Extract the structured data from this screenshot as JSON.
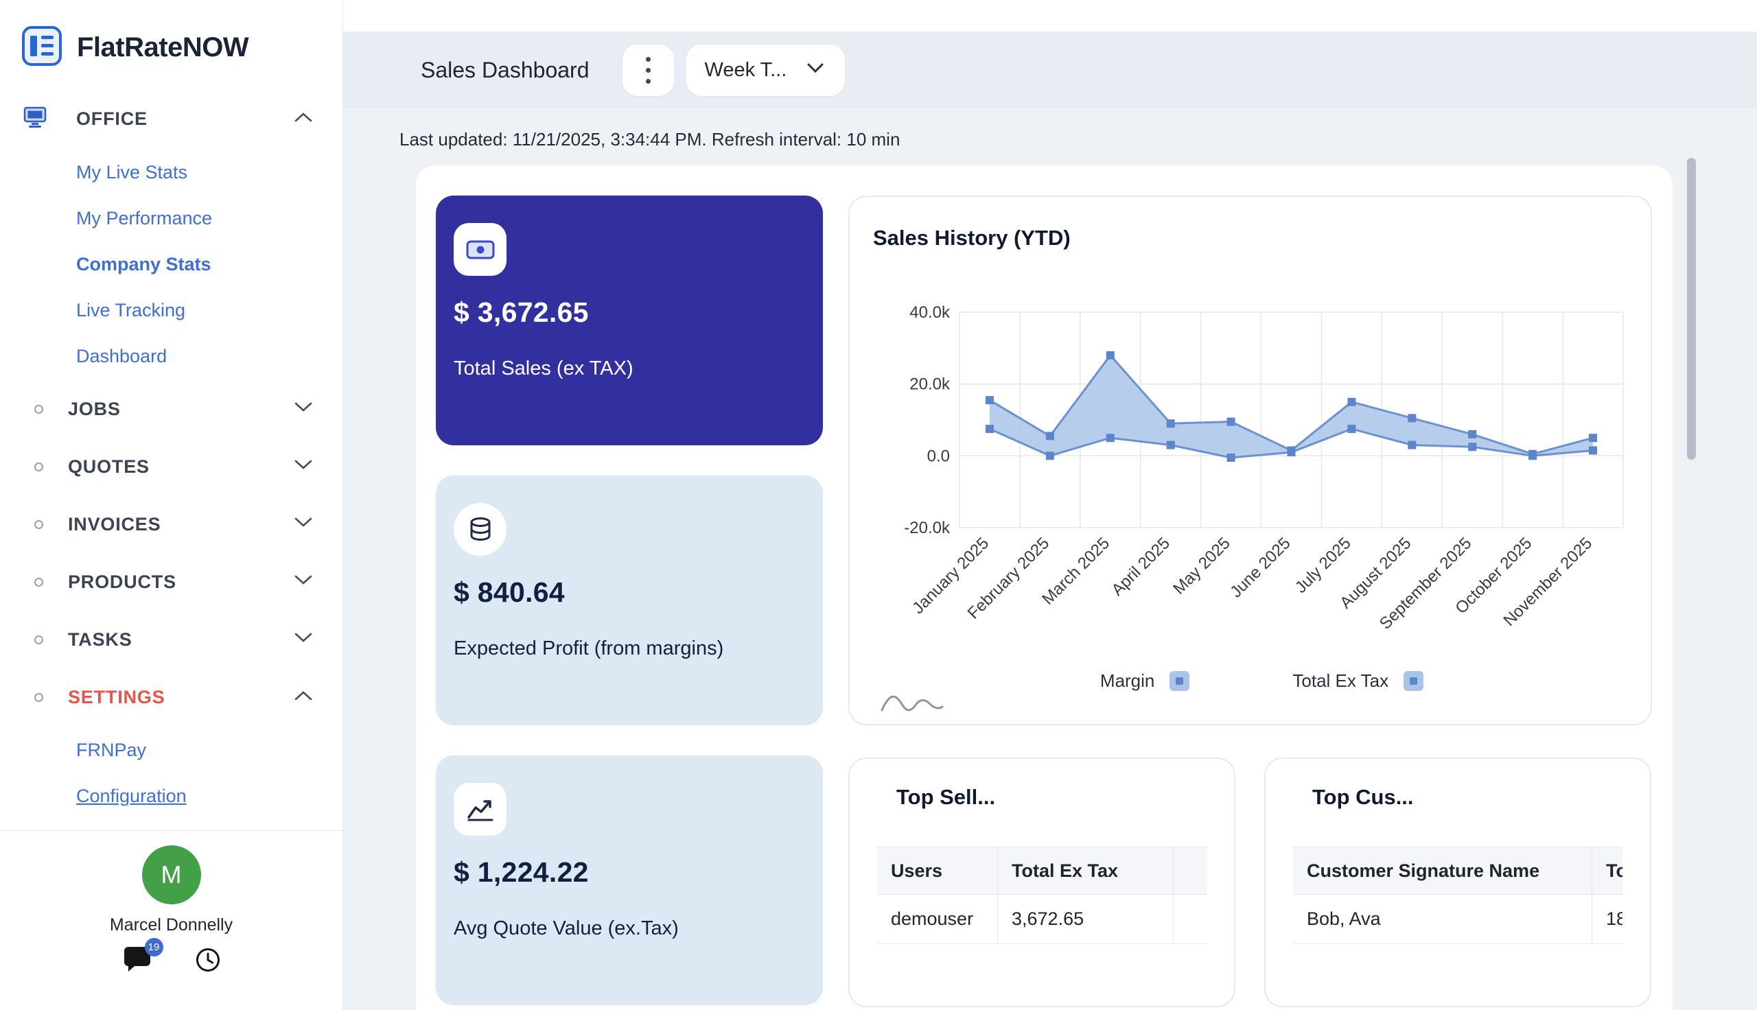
{
  "colors": {
    "accent_blue": "#3e6fd1",
    "dark_card": "#322f9e",
    "light_card": "#dce8f4",
    "settings_red": "#e25749",
    "avatar_green": "#43a047",
    "chart_line": "#6b91d1",
    "chart_fill": "#a9c4e8"
  },
  "sidebar": {
    "logo_text": "FlatRateNOW",
    "office": {
      "label": "OFFICE",
      "items": [
        {
          "label": "My Live Stats"
        },
        {
          "label": "My Performance"
        },
        {
          "label": "Company Stats",
          "active": true
        },
        {
          "label": "Live Tracking"
        },
        {
          "label": "Dashboard"
        }
      ]
    },
    "groups": [
      {
        "label": "JOBS"
      },
      {
        "label": "QUOTES"
      },
      {
        "label": "INVOICES"
      },
      {
        "label": "PRODUCTS"
      },
      {
        "label": "TASKS"
      }
    ],
    "settings": {
      "label": "SETTINGS",
      "items": [
        {
          "label": "FRNPay"
        },
        {
          "label": "Configuration"
        }
      ]
    },
    "user": {
      "name": "Marcel Donnelly",
      "initial": "M",
      "chat_badge": "19"
    }
  },
  "header": {
    "title": "Sales Dashboard",
    "period": "Week T...",
    "last_updated": "Last updated: 11/21/2025, 3:34:44 PM. Refresh interval: 10 min"
  },
  "stat_cards": [
    {
      "icon": "banknote-icon",
      "value": "$ 3,672.65",
      "label": "Total Sales (ex TAX)"
    },
    {
      "icon": "coins-icon",
      "value": "$ 840.64",
      "label": "Expected Profit (from margins)"
    },
    {
      "icon": "line-chart-icon",
      "value": "$ 1,224.22",
      "label": "Avg Quote Value (ex.Tax)"
    }
  ],
  "top_sellers": {
    "title": "Top Sell...",
    "columns": [
      "Users",
      "Total Ex Tax"
    ],
    "rows": [
      [
        "demouser",
        "3,672.65"
      ]
    ]
  },
  "top_customers": {
    "title": "Top Cus...",
    "columns": [
      "Customer Signature Name",
      "To"
    ],
    "rows": [
      [
        "Bob, Ava",
        "18"
      ]
    ]
  },
  "chart_data": {
    "type": "area",
    "title": "Sales History (YTD)",
    "categories": [
      "January 2025",
      "February 2025",
      "March 2025",
      "April 2025",
      "May 2025",
      "June 2025",
      "July 2025",
      "August 2025",
      "September 2025",
      "October 2025",
      "November 2025"
    ],
    "series": [
      {
        "name": "Total Ex Tax",
        "values": [
          15500,
          5500,
          28000,
          9000,
          9500,
          1500,
          15000,
          10500,
          6000,
          500,
          5000
        ]
      },
      {
        "name": "Margin",
        "values": [
          7500,
          0,
          5000,
          3000,
          -500,
          1000,
          7500,
          3000,
          2500,
          0,
          1500
        ]
      }
    ],
    "ylim": [
      -20000,
      40000
    ],
    "yticks": [
      40000,
      20000,
      0,
      -20000
    ],
    "ytick_labels": [
      "40.0k",
      "20.0k",
      "0.0",
      "-20.0k"
    ],
    "legend": [
      "Margin",
      "Total Ex Tax"
    ],
    "legend_position": "bottom",
    "grid": true
  }
}
